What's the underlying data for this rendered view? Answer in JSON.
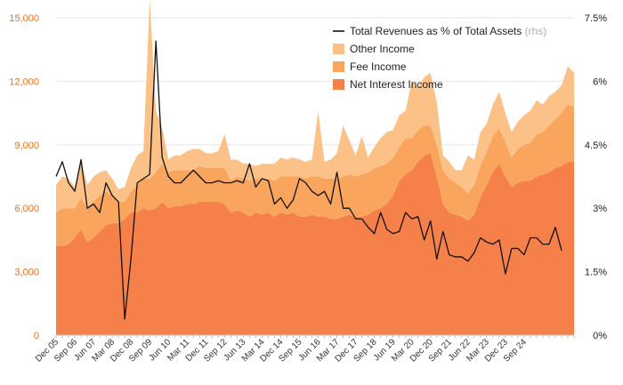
{
  "chart_data": {
    "type": "area",
    "title": "",
    "x_tick_labels": [
      "Dec 05",
      "Sep 06",
      "Jun 07",
      "Mar 08",
      "Dec 08",
      "Sep 09",
      "Jun 10",
      "Mar 11",
      "Dec 11",
      "Sep 12",
      "Jun 13",
      "Mar 14",
      "Dec 14",
      "Sep 15",
      "Jun 16",
      "Mar 17",
      "Dec 17",
      "Sep 18",
      "Jun 19",
      "Mar 20",
      "Dec 20",
      "Sep 21",
      "Jun 22",
      "Mar 23",
      "Dec 23",
      "Sep 24"
    ],
    "x_period": "quarterly",
    "x_start": "Dec 05",
    "ylim_left": [
      0,
      15000
    ],
    "yticks_left": [
      "0",
      "3,000",
      "6,000",
      "9,000",
      "12,000",
      "15,000"
    ],
    "ylim_right": [
      0,
      7.5
    ],
    "yticks_right": [
      "0%",
      "1.5%",
      "3%",
      "4.5%",
      "6%",
      "7.5%"
    ],
    "series": [
      {
        "name": "Net Interest Income",
        "kind": "stacked-area",
        "color": "#f5804a",
        "values": [
          4200,
          4200,
          4300,
          4600,
          5000,
          4400,
          4600,
          4900,
          5200,
          5300,
          5300,
          5500,
          5800,
          5800,
          6000,
          5900,
          6000,
          6300,
          6000,
          6100,
          6100,
          6200,
          6200,
          6300,
          6300,
          6300,
          6300,
          6200,
          5800,
          5900,
          5800,
          5600,
          5800,
          5700,
          5800,
          5600,
          5800,
          5700,
          5800,
          5600,
          5600,
          5700,
          5600,
          5600,
          5500,
          5500,
          5600,
          5700,
          5600,
          5600,
          5700,
          5900,
          6000,
          6200,
          6600,
          7300,
          7600,
          7800,
          8200,
          8500,
          8600,
          7500,
          6200,
          5800,
          5700,
          5600,
          5400,
          5700,
          6500,
          7100,
          7700,
          8100,
          7500,
          7000,
          7200,
          7300,
          7300,
          7500,
          7600,
          7700,
          7900,
          8000,
          8200,
          8200
        ]
      },
      {
        "name": "Fee Income",
        "kind": "stacked-area",
        "color": "#f9a55e",
        "values": [
          1600,
          1800,
          1700,
          1400,
          1500,
          1600,
          1700,
          1700,
          1600,
          1300,
          1000,
          800,
          1000,
          1300,
          1400,
          1500,
          1700,
          1800,
          1700,
          1700,
          1700,
          1600,
          1600,
          1700,
          1600,
          1600,
          1600,
          1700,
          1500,
          1600,
          1600,
          1700,
          1600,
          1700,
          1600,
          1700,
          1700,
          1800,
          1700,
          1900,
          1800,
          1800,
          1900,
          1800,
          1900,
          1900,
          1900,
          1900,
          1900,
          2000,
          2000,
          2000,
          2000,
          1900,
          1800,
          1600,
          1700,
          1500,
          1500,
          1400,
          1300,
          1500,
          1600,
          1600,
          1500,
          1400,
          1300,
          1400,
          1500,
          1600,
          1700,
          1700,
          1600,
          1400,
          1600,
          1700,
          1800,
          2000,
          2000,
          2200,
          2300,
          2500,
          2700,
          2600
        ]
      },
      {
        "name": "Other Income",
        "kind": "stacked-area",
        "color": "#fbc186",
        "values": [
          1300,
          1500,
          1400,
          1000,
          1700,
          1100,
          1200,
          1100,
          1000,
          800,
          600,
          700,
          1100,
          1400,
          1300,
          8500,
          2900,
          1700,
          600,
          700,
          700,
          900,
          1000,
          800,
          700,
          700,
          800,
          1600,
          1000,
          800,
          700,
          800,
          600,
          700,
          700,
          800,
          900,
          800,
          900,
          800,
          800,
          800,
          3100,
          800,
          900,
          1200,
          2400,
          1600,
          1000,
          1800,
          700,
          1000,
          1300,
          1500,
          1300,
          1500,
          1300,
          2700,
          2000,
          2300,
          2500,
          2000,
          700,
          800,
          600,
          800,
          1800,
          1200,
          1600,
          1300,
          1500,
          1700,
          1400,
          1200,
          1300,
          1400,
          1500,
          1600,
          1300,
          1400,
          1300,
          1300,
          1800,
          1600
        ]
      },
      {
        "name": "Total Revenues as % of Total Assets",
        "kind": "line",
        "axis": "rhs",
        "color": "#111111",
        "values": [
          3.75,
          4.1,
          3.6,
          3.4,
          4.15,
          3.0,
          3.1,
          2.9,
          3.6,
          3.3,
          3.15,
          0.38,
          1.8,
          3.6,
          3.7,
          3.8,
          6.95,
          4.2,
          3.75,
          3.6,
          3.6,
          3.75,
          3.9,
          3.75,
          3.6,
          3.6,
          3.65,
          3.6,
          3.6,
          3.65,
          3.6,
          4.05,
          3.5,
          3.7,
          3.65,
          3.1,
          3.25,
          3.0,
          3.2,
          3.7,
          3.6,
          3.4,
          3.3,
          3.4,
          3.1,
          3.85,
          3.0,
          3.0,
          2.75,
          2.75,
          2.55,
          2.4,
          2.9,
          2.5,
          2.4,
          2.45,
          2.9,
          2.75,
          2.8,
          2.25,
          2.7,
          1.8,
          2.45,
          1.9,
          1.85,
          1.85,
          1.75,
          1.95,
          2.3,
          2.2,
          2.15,
          2.25,
          1.45,
          2.05,
          2.05,
          1.9,
          2.3,
          2.3,
          2.15,
          2.15,
          2.55,
          2.0
        ]
      }
    ],
    "legend": [
      {
        "label": "Total Revenues as % of Total Assets",
        "suffix": "(rhs)",
        "marker": "line",
        "color": "#111111"
      },
      {
        "label": "Other Income",
        "marker": "square",
        "color": "#fbc186"
      },
      {
        "label": "Fee Income",
        "marker": "square",
        "color": "#f9a55e"
      },
      {
        "label": "Net Interest Income",
        "marker": "square",
        "color": "#f5804a"
      }
    ],
    "legend_position": "top-right",
    "grid": "horizontal",
    "axis_colors": {
      "left_ticks": "#e8711e",
      "right_ticks": "#222222",
      "grid": "#e6e6e6"
    }
  }
}
